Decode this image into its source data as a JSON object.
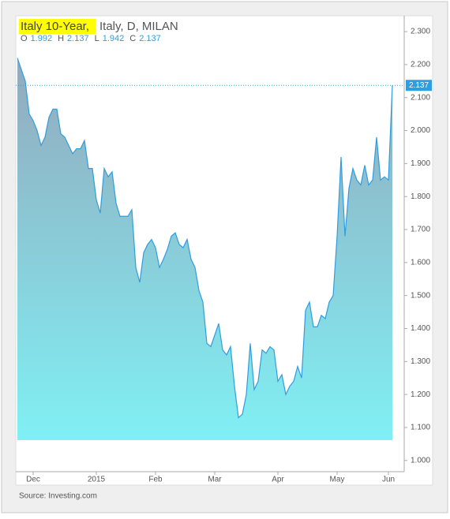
{
  "chart_data": {
    "type": "area",
    "title": "Italy 10-Year,",
    "subtitle": "Italy, D, MILAN",
    "ohlc": [
      {
        "label": "O",
        "value": 1.992
      },
      {
        "label": "H",
        "value": 2.137
      },
      {
        "label": "L",
        "value": 1.942
      },
      {
        "label": "C",
        "value": 2.137
      }
    ],
    "last_value": 2.137,
    "source": "Source: Investing.com",
    "categories": [
      null,
      null,
      null,
      null,
      "Dec",
      null,
      null,
      null,
      null,
      null,
      null,
      null,
      null,
      null,
      null,
      null,
      null,
      null,
      null,
      null,
      "2015",
      null,
      null,
      null,
      null,
      null,
      null,
      null,
      null,
      null,
      null,
      null,
      null,
      null,
      null,
      "Feb",
      null,
      null,
      null,
      null,
      null,
      null,
      null,
      null,
      null,
      null,
      null,
      null,
      null,
      null,
      "Mar",
      null,
      null,
      null,
      null,
      null,
      null,
      null,
      null,
      null,
      null,
      null,
      null,
      null,
      null,
      null,
      "Apr",
      null,
      null,
      null,
      null,
      null,
      null,
      null,
      null,
      null,
      null,
      null,
      null,
      null,
      null,
      "May",
      null,
      null,
      null,
      null,
      null,
      null,
      null,
      null,
      null,
      null,
      null,
      null,
      "Jun",
      null
    ],
    "series": [
      {
        "name": "Italy 10-Year",
        "color": "#2f9de0",
        "values": [
          2.22,
          2.185,
          2.15,
          2.05,
          2.03,
          2.0,
          1.955,
          1.98,
          2.04,
          2.065,
          2.065,
          1.99,
          1.98,
          1.955,
          1.93,
          1.945,
          1.945,
          1.97,
          1.885,
          1.885,
          1.79,
          1.75,
          1.885,
          1.86,
          1.875,
          1.78,
          1.74,
          1.74,
          1.74,
          1.76,
          1.585,
          1.54,
          1.63,
          1.655,
          1.67,
          1.645,
          1.585,
          1.61,
          1.64,
          1.68,
          1.69,
          1.655,
          1.645,
          1.67,
          1.61,
          1.585,
          1.515,
          1.48,
          1.355,
          1.345,
          1.38,
          1.415,
          1.335,
          1.32,
          1.345,
          1.225,
          1.13,
          1.14,
          1.2,
          1.355,
          1.215,
          1.24,
          1.335,
          1.325,
          1.345,
          1.335,
          1.24,
          1.26,
          1.2,
          1.225,
          1.24,
          1.285,
          1.25,
          1.455,
          1.48,
          1.405,
          1.405,
          1.44,
          1.43,
          1.48,
          1.5,
          1.68,
          1.92,
          1.68,
          1.825,
          1.885,
          1.85,
          1.835,
          1.895,
          1.835,
          1.85,
          1.98,
          1.85,
          1.86,
          1.85,
          2.137
        ]
      }
    ],
    "ylim": [
      0.966,
      2.348
    ],
    "yticks": [
      {
        "value": 1.0,
        "label": "1.000"
      },
      {
        "value": 1.1,
        "label": "1.100"
      },
      {
        "value": 1.2,
        "label": "1.200"
      },
      {
        "value": 1.3,
        "label": "1.300"
      },
      {
        "value": 1.4,
        "label": "1.400"
      },
      {
        "value": 1.5,
        "label": "1.500"
      },
      {
        "value": 1.6,
        "label": "1.600"
      },
      {
        "value": 1.7,
        "label": "1.700"
      },
      {
        "value": 1.8,
        "label": "1.800"
      },
      {
        "value": 1.9,
        "label": "1.900"
      },
      {
        "value": 2.0,
        "label": "2.000"
      },
      {
        "value": 2.1,
        "label": "2.100"
      },
      {
        "value": 2.2,
        "label": "2.200"
      },
      {
        "value": 2.3,
        "label": "2.300"
      }
    ]
  }
}
